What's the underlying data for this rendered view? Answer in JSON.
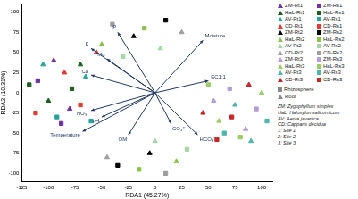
{
  "chart_data": {
    "type": "scatter",
    "x_label": "RDA1 (45.27%)",
    "y_label": "RDA2 (10.31%)",
    "xlim": [
      -125,
      110
    ],
    "xticks": [
      -125,
      -100,
      -75,
      -50,
      -25,
      0,
      25,
      50,
      75,
      100
    ],
    "ylim": [
      -110,
      110
    ],
    "yticks": [
      -100,
      -75,
      -50,
      -25,
      0,
      25,
      50,
      75,
      100
    ],
    "grid": false,
    "legend": "right",
    "series": [
      {
        "name": "ZM-Rt1",
        "color": "#7030a0",
        "marker": "triangle",
        "x": [
          -95,
          -80
        ],
        "y": [
          40,
          -20
        ]
      },
      {
        "name": "ZM-Rs1",
        "color": "#7030a0",
        "marker": "square",
        "x": [
          -110,
          -88
        ],
        "y": [
          15,
          -38
        ]
      },
      {
        "name": "HaL-Rt1",
        "color": "#1b5e20",
        "marker": "triangle",
        "x": [
          -70,
          -100
        ],
        "y": [
          35,
          -10
        ]
      },
      {
        "name": "HaL-Rs1",
        "color": "#1b5e20",
        "marker": "square",
        "x": [
          -118,
          -78
        ],
        "y": [
          10,
          5
        ]
      },
      {
        "name": "AV-Rt1",
        "color": "#26a69a",
        "marker": "triangle",
        "x": [
          -65,
          -105
        ],
        "y": [
          20,
          35
        ]
      },
      {
        "name": "AV-Rs1",
        "color": "#26a69a",
        "marker": "square",
        "x": [
          -60,
          -92
        ],
        "y": [
          -35,
          -30
        ]
      },
      {
        "name": "CD-Rt1",
        "color": "#e53935",
        "marker": "triangle",
        "x": [
          -55,
          -85
        ],
        "y": [
          50,
          25
        ]
      },
      {
        "name": "CD-Rs1",
        "color": "#e53935",
        "marker": "square",
        "x": [
          -112,
          -70
        ],
        "y": [
          -25,
          -15
        ]
      },
      {
        "name": "ZM-Rt2",
        "color": "#000000",
        "marker": "triangle",
        "x": [
          -20,
          -5
        ],
        "y": [
          70,
          -75
        ]
      },
      {
        "name": "ZM-Rs2",
        "color": "#000000",
        "marker": "square",
        "x": [
          10,
          -35
        ],
        "y": [
          90,
          -90
        ]
      },
      {
        "name": "HaL-Rt2",
        "color": "#8bc34a",
        "marker": "triangle",
        "x": [
          -50,
          20
        ],
        "y": [
          60,
          -85
        ]
      },
      {
        "name": "HaL-Rs2",
        "color": "#8bc34a",
        "marker": "square",
        "x": [
          -10,
          -15
        ],
        "y": [
          80,
          -95
        ]
      },
      {
        "name": "AV-Rt2",
        "color": "#a5d6a7",
        "marker": "triangle",
        "x": [
          5,
          0
        ],
        "y": [
          55,
          -60
        ]
      },
      {
        "name": "AV-Rs2",
        "color": "#a5d6a7",
        "marker": "square",
        "x": [
          -30,
          30
        ],
        "y": [
          45,
          -70
        ]
      },
      {
        "name": "CD-Rt2",
        "color": "#9e9e9e",
        "marker": "triangle",
        "x": [
          25,
          -45
        ],
        "y": [
          75,
          -80
        ]
      },
      {
        "name": "CD-Rs2",
        "color": "#9e9e9e",
        "marker": "square",
        "x": [
          -40,
          10
        ],
        "y": [
          85,
          -100
        ]
      },
      {
        "name": "ZM-Rt3",
        "color": "#b39ddb",
        "marker": "triangle",
        "x": [
          55,
          85
        ],
        "y": [
          -10,
          -45
        ]
      },
      {
        "name": "ZM-Rs3",
        "color": "#b39ddb",
        "marker": "square",
        "x": [
          70,
          95
        ],
        "y": [
          5,
          -20
        ]
      },
      {
        "name": "HaL-Rt3",
        "color": "#9ccc65",
        "marker": "triangle",
        "x": [
          60,
          100
        ],
        "y": [
          -35,
          0
        ]
      },
      {
        "name": "HaL-Rs3",
        "color": "#9ccc65",
        "marker": "square",
        "x": [
          80,
          50
        ],
        "y": [
          -55,
          10
        ]
      },
      {
        "name": "AV-Rt3",
        "color": "#4db6ac",
        "marker": "triangle",
        "x": [
          75,
          90
        ],
        "y": [
          -15,
          -60
        ]
      },
      {
        "name": "AV-Rs3",
        "color": "#4db6ac",
        "marker": "square",
        "x": [
          65,
          105
        ],
        "y": [
          -50,
          -35
        ]
      },
      {
        "name": "CD-Rt3",
        "color": "#c62828",
        "marker": "triangle",
        "x": [
          45,
          88
        ],
        "y": [
          -25,
          10
        ]
      },
      {
        "name": "CD-Rs3",
        "color": "#c62828",
        "marker": "square",
        "x": [
          72,
          58
        ],
        "y": [
          -30,
          -58
        ]
      }
    ],
    "vectors": [
      {
        "label": "P",
        "x": -35,
        "y": 75
      },
      {
        "label": "Moisture",
        "x": 45,
        "y": 65
      },
      {
        "label": "K",
        "x": -60,
        "y": 55
      },
      {
        "label": "Mg",
        "x": -45,
        "y": 42
      },
      {
        "label": "Ca",
        "x": -60,
        "y": 22
      },
      {
        "label": "EC1:1",
        "x": 50,
        "y": 15
      },
      {
        "label": "NO₃⁻",
        "x": -60,
        "y": -22
      },
      {
        "label": "pH",
        "x": -50,
        "y": -30
      },
      {
        "label": "Temperature",
        "x": -68,
        "y": -48
      },
      {
        "label": "OM",
        "x": -25,
        "y": -52
      },
      {
        "label": "CO₃²⁻",
        "x": 15,
        "y": -38
      },
      {
        "label": "HCO₃⁻",
        "x": 40,
        "y": -52
      }
    ],
    "marker_legend": [
      {
        "label": "Rhizosphere",
        "marker": "square"
      },
      {
        "label": "Root",
        "marker": "triangle"
      }
    ],
    "annotations": [
      "ZM: Zygophyllum simplex",
      "HaL: Haloxylon salicornicum",
      "AV: Aerva javanica",
      "CD: Capparis decidua",
      "1: Site 1",
      "2: Site 2",
      "3: Site 3"
    ]
  }
}
